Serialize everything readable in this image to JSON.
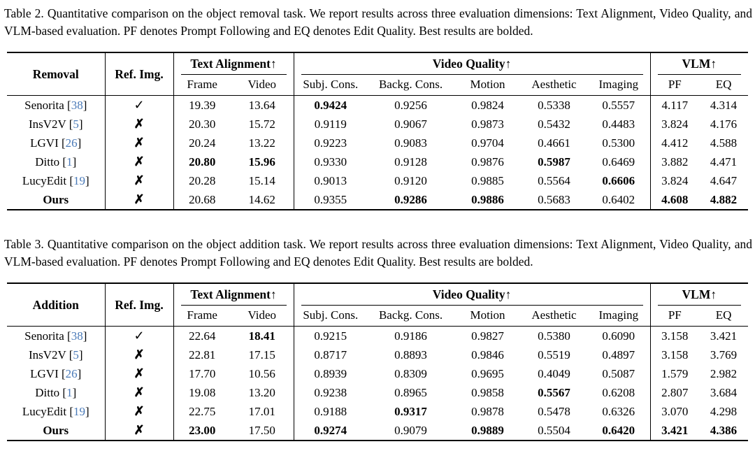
{
  "symbols": {
    "check": "✓",
    "cross": "✗"
  },
  "colors": {
    "citation_blue": "#4a7ab8",
    "text": "#000000",
    "background": "#ffffff"
  },
  "tables": [
    {
      "caption": "Table 2. Quantitative comparison on the object removal task. We report results across three evaluation dimensions: Text Alignment, Video Quality, and VLM-based evaluation. PF denotes Prompt Following and EQ denotes Edit Quality. Best results are bolded.",
      "task_header": "Removal",
      "ref_header": "Ref. Img.",
      "groups": [
        {
          "label": "Text Alignment↑"
        },
        {
          "label": "Video Quality↑"
        },
        {
          "label": "VLM↑"
        }
      ],
      "subheaders": [
        "Frame",
        "Video",
        "Subj. Cons.",
        "Backg. Cons.",
        "Motion",
        "Aesthetic",
        "Imaging",
        "PF",
        "EQ"
      ],
      "rows": [
        {
          "method": "Senorita",
          "cite": "38",
          "bold_method": false,
          "ref": true,
          "values": [
            "19.39",
            "13.64",
            "0.9424",
            "0.9256",
            "0.9824",
            "0.5338",
            "0.5557",
            "4.117",
            "4.314"
          ],
          "bold_indices": [
            2
          ]
        },
        {
          "method": "InsV2V",
          "cite": "5",
          "bold_method": false,
          "ref": false,
          "values": [
            "20.30",
            "15.72",
            "0.9119",
            "0.9067",
            "0.9873",
            "0.5432",
            "0.4483",
            "3.824",
            "4.176"
          ],
          "bold_indices": []
        },
        {
          "method": "LGVI",
          "cite": "26",
          "bold_method": false,
          "ref": false,
          "values": [
            "20.24",
            "13.22",
            "0.9223",
            "0.9083",
            "0.9704",
            "0.4661",
            "0.5300",
            "4.412",
            "4.588"
          ],
          "bold_indices": []
        },
        {
          "method": "Ditto",
          "cite": "1",
          "bold_method": false,
          "ref": false,
          "values": [
            "20.80",
            "15.96",
            "0.9330",
            "0.9128",
            "0.9876",
            "0.5987",
            "0.6469",
            "3.882",
            "4.471"
          ],
          "bold_indices": [
            0,
            1,
            5
          ]
        },
        {
          "method": "LucyEdit",
          "cite": "19",
          "bold_method": false,
          "ref": false,
          "values": [
            "20.28",
            "15.14",
            "0.9013",
            "0.9120",
            "0.9885",
            "0.5564",
            "0.6606",
            "3.824",
            "4.647"
          ],
          "bold_indices": [
            6
          ]
        },
        {
          "method": "Ours",
          "cite": "",
          "bold_method": true,
          "ref": false,
          "values": [
            "20.68",
            "14.62",
            "0.9355",
            "0.9286",
            "0.9886",
            "0.5683",
            "0.6402",
            "4.608",
            "4.882"
          ],
          "bold_indices": [
            3,
            4,
            7,
            8
          ]
        }
      ]
    },
    {
      "caption": "Table 3. Quantitative comparison on the object addition task. We report results across three evaluation dimensions: Text Alignment, Video Quality, and VLM-based evaluation. PF denotes Prompt Following and EQ denotes Edit Quality. Best results are bolded.",
      "task_header": "Addition",
      "ref_header": "Ref. Img.",
      "groups": [
        {
          "label": "Text Alignment↑"
        },
        {
          "label": "Video Quality↑"
        },
        {
          "label": "VLM↑"
        }
      ],
      "subheaders": [
        "Frame",
        "Video",
        "Subj. Cons.",
        "Backg. Cons.",
        "Motion",
        "Aesthetic",
        "Imaging",
        "PF",
        "EQ"
      ],
      "rows": [
        {
          "method": "Senorita",
          "cite": "38",
          "bold_method": false,
          "ref": true,
          "values": [
            "22.64",
            "18.41",
            "0.9215",
            "0.9186",
            "0.9827",
            "0.5380",
            "0.6090",
            "3.158",
            "3.421"
          ],
          "bold_indices": [
            1
          ]
        },
        {
          "method": "InsV2V",
          "cite": "5",
          "bold_method": false,
          "ref": false,
          "values": [
            "22.81",
            "17.15",
            "0.8717",
            "0.8893",
            "0.9846",
            "0.5519",
            "0.4897",
            "3.158",
            "3.769"
          ],
          "bold_indices": []
        },
        {
          "method": "LGVI",
          "cite": "26",
          "bold_method": false,
          "ref": false,
          "values": [
            "17.70",
            "10.56",
            "0.8939",
            "0.8309",
            "0.9695",
            "0.4049",
            "0.5087",
            "1.579",
            "2.982"
          ],
          "bold_indices": []
        },
        {
          "method": "Ditto",
          "cite": "1",
          "bold_method": false,
          "ref": false,
          "values": [
            "19.08",
            "13.20",
            "0.9238",
            "0.8965",
            "0.9858",
            "0.5567",
            "0.6208",
            "2.807",
            "3.684"
          ],
          "bold_indices": [
            5
          ]
        },
        {
          "method": "LucyEdit",
          "cite": "19",
          "bold_method": false,
          "ref": false,
          "values": [
            "22.75",
            "17.01",
            "0.9188",
            "0.9317",
            "0.9878",
            "0.5478",
            "0.6326",
            "3.070",
            "4.298"
          ],
          "bold_indices": [
            3
          ]
        },
        {
          "method": "Ours",
          "cite": "",
          "bold_method": true,
          "ref": false,
          "values": [
            "23.00",
            "17.50",
            "0.9274",
            "0.9079",
            "0.9889",
            "0.5504",
            "0.6420",
            "3.421",
            "4.386"
          ],
          "bold_indices": [
            0,
            2,
            4,
            6,
            7,
            8
          ]
        }
      ]
    }
  ]
}
